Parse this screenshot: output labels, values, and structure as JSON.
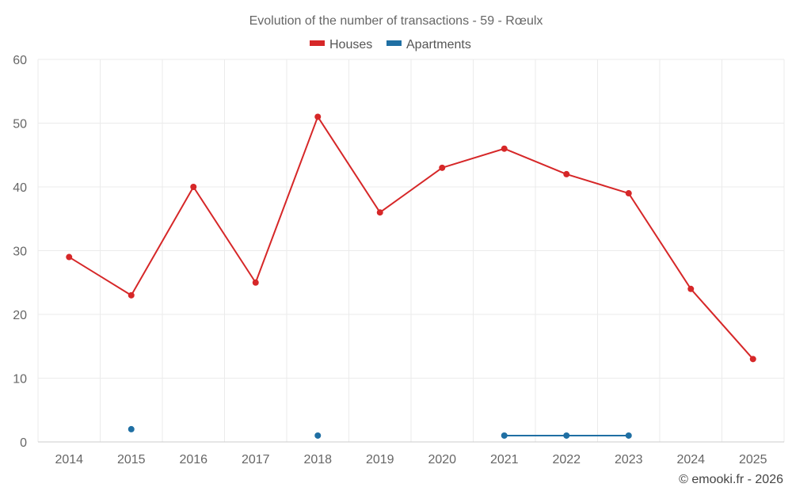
{
  "chart_data": {
    "type": "line",
    "title": "Evolution of the number of transactions - 59 - Rœulx",
    "categories": [
      "2014",
      "2015",
      "2016",
      "2017",
      "2018",
      "2019",
      "2020",
      "2021",
      "2022",
      "2023",
      "2024",
      "2025"
    ],
    "ylim": [
      0,
      60
    ],
    "yticks": [
      0,
      10,
      20,
      30,
      40,
      50,
      60
    ],
    "grid": true,
    "legend_position": "top-center",
    "series": [
      {
        "name": "Houses",
        "color": "#d62728",
        "values": [
          29,
          23,
          40,
          25,
          51,
          36,
          43,
          46,
          42,
          39,
          24,
          13
        ]
      },
      {
        "name": "Apartments",
        "color": "#1f6fa3",
        "values": [
          null,
          2,
          null,
          null,
          1,
          null,
          null,
          1,
          1,
          1,
          null,
          null
        ]
      }
    ]
  },
  "credit": "© emooki.fr - 2026"
}
